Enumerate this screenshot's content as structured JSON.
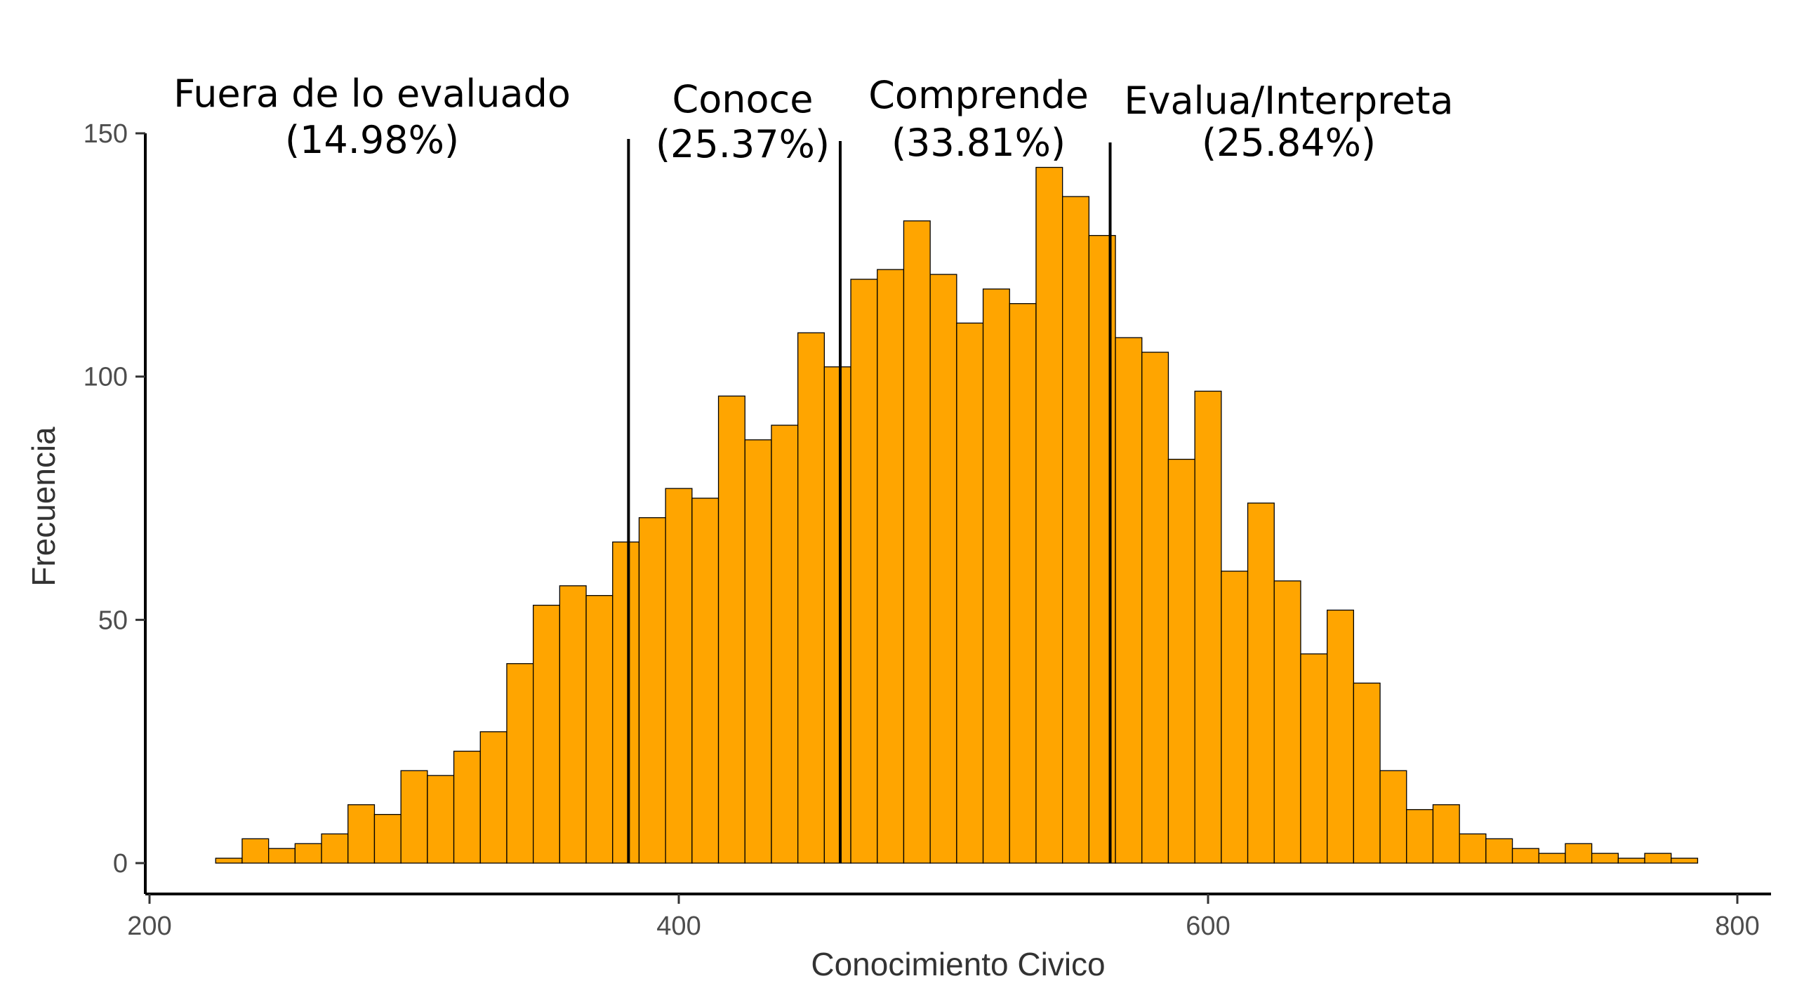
{
  "chart_data": {
    "type": "bar",
    "subtype": "histogram",
    "xlabel": "Conocimiento Civico",
    "ylabel": "Frecuencia",
    "xlim": [
      200,
      800
    ],
    "ylim": [
      0,
      150
    ],
    "x_ticks": [
      "200",
      "400",
      "600",
      "800"
    ],
    "y_ticks": [
      "0",
      "50",
      "100",
      "150"
    ],
    "bin_width": 10,
    "bin_start": 225,
    "bar_color": "#FFA500",
    "bar_edge_color": "#000000",
    "values": [
      1,
      5,
      3,
      4,
      6,
      12,
      10,
      19,
      18,
      23,
      27,
      41,
      53,
      57,
      55,
      66,
      71,
      77,
      75,
      96,
      87,
      90,
      109,
      102,
      120,
      122,
      132,
      121,
      111,
      118,
      115,
      143,
      137,
      129,
      108,
      105,
      83,
      97,
      60,
      74,
      58,
      43,
      52,
      37,
      19,
      11,
      12,
      6,
      5,
      3,
      2,
      4,
      2,
      1,
      2,
      1
    ],
    "cutoffs": [
      381,
      461,
      563
    ],
    "regions": [
      {
        "name": "Fuera de lo evaluado",
        "percent": "(14.98%)"
      },
      {
        "name": "Conoce",
        "percent": "(25.37%)"
      },
      {
        "name": "Comprende",
        "percent": "(33.81%)"
      },
      {
        "name": "Evalua/Interpreta",
        "percent": "(25.84%)"
      }
    ]
  }
}
